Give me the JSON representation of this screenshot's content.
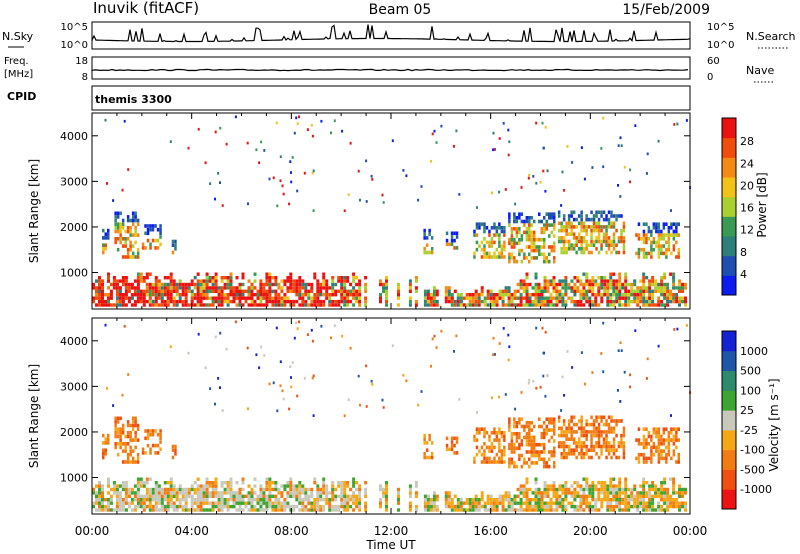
{
  "header": {
    "title_left": "Inuvik (fitACF)",
    "title_center": "Beam 05",
    "title_right": "15/Feb/2009"
  },
  "top_panels": {
    "nsky_label": "N.Sky",
    "nsky_ticks": [
      "10^5",
      "10^0"
    ],
    "nsearch_label": "N.Search",
    "nsearch_ticks": [
      "10^5",
      "10^0"
    ],
    "freq_label": "Freq.",
    "freq_unit": "[MHz]",
    "freq_ticks": [
      "18",
      "8"
    ],
    "nave_label": "Nave",
    "nave_ticks": [
      "60",
      "0"
    ],
    "cpid_label": "CPID",
    "cpid_value": "themis 3300"
  },
  "colors": {
    "power_scale": [
      "#0a1cf0",
      "#1f4fb0",
      "#2e7f7a",
      "#3a9a54",
      "#a9d02e",
      "#f2c218",
      "#f38a14",
      "#f04c0a",
      "#ec1111"
    ],
    "velocity_scale": [
      "#ee1313",
      "#f14f12",
      "#f27c13",
      "#f6a716",
      "#c8c8bc",
      "#3ea531",
      "#2e8a6c",
      "#1e57a8",
      "#1421d4"
    ]
  },
  "chart_data": [
    {
      "type": "heatmap",
      "name": "power",
      "xlabel": "",
      "ylabel": "Slant Range [km]",
      "x_ticks": [
        "00:00",
        "04:00",
        "08:00",
        "12:00",
        "16:00",
        "20:00",
        "00:00"
      ],
      "x_range_hours": [
        0,
        24
      ],
      "y_range_km": [
        200,
        4500
      ],
      "y_ticks": [
        "1000",
        "2000",
        "3000",
        "4000"
      ],
      "colorbar_label": "Power [dB]",
      "colorbar_ticks": [
        "4",
        "8",
        "12",
        "16",
        "20",
        "24",
        "28"
      ],
      "colorbar_range": [
        0,
        30
      ]
    },
    {
      "type": "heatmap",
      "name": "velocity",
      "xlabel": "Time UT",
      "ylabel": "Slant Range [km]",
      "x_ticks": [
        "00:00",
        "04:00",
        "08:00",
        "12:00",
        "16:00",
        "20:00",
        "00:00"
      ],
      "x_range_hours": [
        0,
        24
      ],
      "y_range_km": [
        200,
        4500
      ],
      "y_ticks": [
        "1000",
        "2000",
        "3000",
        "4000"
      ],
      "colorbar_label": "Velocity [m s⁻¹]",
      "colorbar_ticks": [
        "1000",
        "500",
        "100",
        "25",
        "-25",
        "-100",
        "-500",
        "-1000"
      ]
    }
  ]
}
